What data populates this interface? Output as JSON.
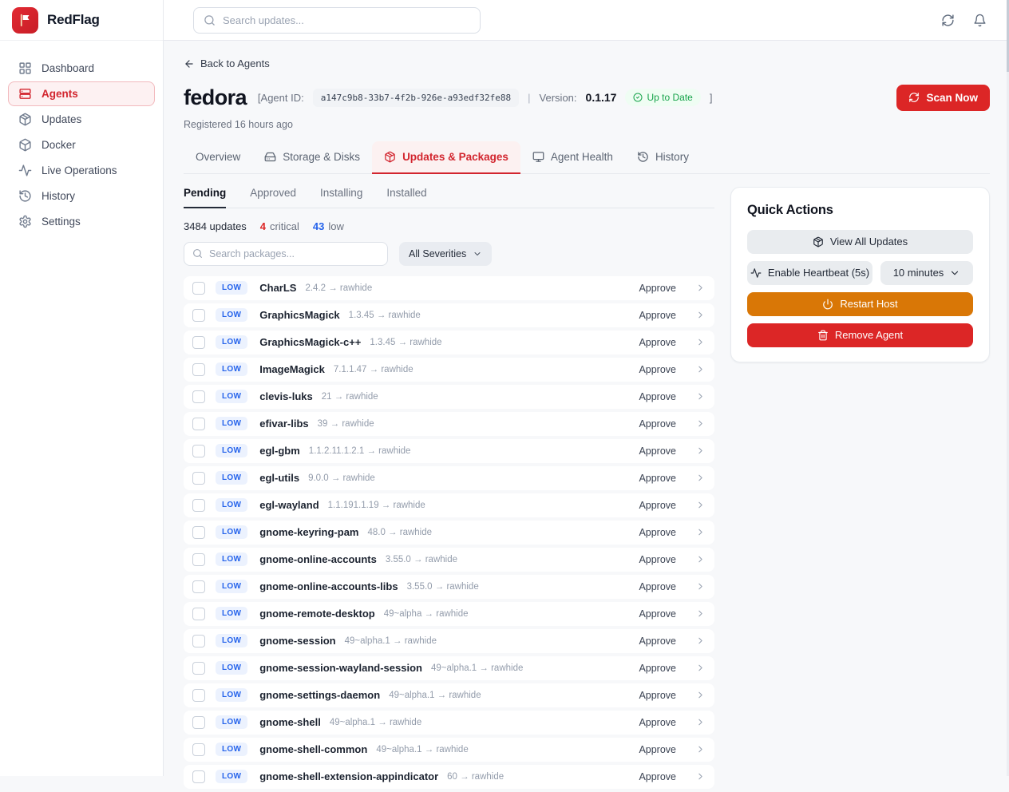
{
  "brand": {
    "name": "RedFlag"
  },
  "topbar": {
    "search_placeholder": "Search updates..."
  },
  "sidebar": {
    "items": [
      {
        "label": "Dashboard",
        "icon": "grid",
        "active": false
      },
      {
        "label": "Agents",
        "icon": "server",
        "active": true
      },
      {
        "label": "Updates",
        "icon": "package",
        "active": false
      },
      {
        "label": "Docker",
        "icon": "cube",
        "active": false
      },
      {
        "label": "Live Operations",
        "icon": "activity",
        "active": false
      },
      {
        "label": "History",
        "icon": "history",
        "active": false
      },
      {
        "label": "Settings",
        "icon": "gear",
        "active": false
      }
    ]
  },
  "header": {
    "back_label": "Back to Agents",
    "agent_name": "fedora",
    "agent_id_label": "[Agent ID:",
    "agent_id": "a147c9b8-33b7-4f2b-926e-a93edf32fe88",
    "pipe": "|",
    "version_label": "Version:",
    "version": "0.1.17",
    "status_badge": "Up to Date",
    "bracket_close": "]",
    "registered": "Registered 16 hours ago",
    "scan_button": "Scan Now"
  },
  "tabs": [
    {
      "label": "Overview",
      "icon": null,
      "active": false
    },
    {
      "label": "Storage & Disks",
      "icon": "hard-drive",
      "active": false
    },
    {
      "label": "Updates & Packages",
      "icon": "package",
      "active": true
    },
    {
      "label": "Agent Health",
      "icon": "monitor",
      "active": false
    },
    {
      "label": "History",
      "icon": "history",
      "active": false
    }
  ],
  "subtabs": [
    {
      "label": "Pending",
      "active": true
    },
    {
      "label": "Approved",
      "active": false
    },
    {
      "label": "Installing",
      "active": false
    },
    {
      "label": "Installed",
      "active": false
    }
  ],
  "stats": {
    "updates_text": "3484 updates",
    "critical_count": "4",
    "critical_label": "critical",
    "low_count": "43",
    "low_label": "low"
  },
  "filters": {
    "search_placeholder": "Search packages...",
    "severity": "All Severities"
  },
  "packages": [
    {
      "severity": "LOW",
      "name": "CharLS",
      "change": "2.4.2 → rawhide",
      "action": "Approve"
    },
    {
      "severity": "LOW",
      "name": "GraphicsMagick",
      "change": "1.3.45 → rawhide",
      "action": "Approve"
    },
    {
      "severity": "LOW",
      "name": "GraphicsMagick-c++",
      "change": "1.3.45 → rawhide",
      "action": "Approve"
    },
    {
      "severity": "LOW",
      "name": "ImageMagick",
      "change": "7.1.1.47 → rawhide",
      "action": "Approve"
    },
    {
      "severity": "LOW",
      "name": "clevis-luks",
      "change": "21 → rawhide",
      "action": "Approve"
    },
    {
      "severity": "LOW",
      "name": "efivar-libs",
      "change": "39 → rawhide",
      "action": "Approve"
    },
    {
      "severity": "LOW",
      "name": "egl-gbm",
      "change": "1.1.2.11.1.2.1 → rawhide",
      "action": "Approve"
    },
    {
      "severity": "LOW",
      "name": "egl-utils",
      "change": "9.0.0 → rawhide",
      "action": "Approve"
    },
    {
      "severity": "LOW",
      "name": "egl-wayland",
      "change": "1.1.191.1.19 → rawhide",
      "action": "Approve"
    },
    {
      "severity": "LOW",
      "name": "gnome-keyring-pam",
      "change": "48.0 → rawhide",
      "action": "Approve"
    },
    {
      "severity": "LOW",
      "name": "gnome-online-accounts",
      "change": "3.55.0 → rawhide",
      "action": "Approve"
    },
    {
      "severity": "LOW",
      "name": "gnome-online-accounts-libs",
      "change": "3.55.0 → rawhide",
      "action": "Approve"
    },
    {
      "severity": "LOW",
      "name": "gnome-remote-desktop",
      "change": "49~alpha → rawhide",
      "action": "Approve"
    },
    {
      "severity": "LOW",
      "name": "gnome-session",
      "change": "49~alpha.1 → rawhide",
      "action": "Approve"
    },
    {
      "severity": "LOW",
      "name": "gnome-session-wayland-session",
      "change": "49~alpha.1 → rawhide",
      "action": "Approve"
    },
    {
      "severity": "LOW",
      "name": "gnome-settings-daemon",
      "change": "49~alpha.1 → rawhide",
      "action": "Approve"
    },
    {
      "severity": "LOW",
      "name": "gnome-shell",
      "change": "49~alpha.1 → rawhide",
      "action": "Approve"
    },
    {
      "severity": "LOW",
      "name": "gnome-shell-common",
      "change": "49~alpha.1 → rawhide",
      "action": "Approve"
    },
    {
      "severity": "LOW",
      "name": "gnome-shell-extension-appindicator",
      "change": "60 → rawhide",
      "action": "Approve"
    }
  ],
  "quick_actions": {
    "title": "Quick Actions",
    "view_all_label": "View All Updates",
    "heartbeat_label": "Enable Heartbeat (5s)",
    "interval_label": "10 minutes",
    "restart_label": "Restart Host",
    "remove_label": "Remove Agent"
  },
  "colors": {
    "accent_red": "#dc2626",
    "warning_orange": "#d97706",
    "low_blue": "#2563eb",
    "success_green": "#16a34a"
  }
}
